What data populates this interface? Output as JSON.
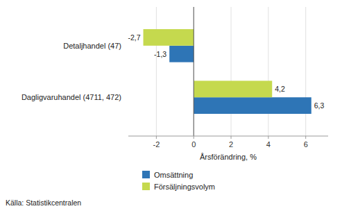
{
  "chart_data": {
    "type": "bar",
    "orientation": "horizontal",
    "categories": [
      "Dagligvaruhandel (4711, 472)",
      "Detaljhandel (47)"
    ],
    "series": [
      {
        "name": "Omsättning",
        "color": "#2E75B6",
        "values": [
          6.3,
          -1.3
        ],
        "value_labels": [
          "6,3",
          "-1,3"
        ]
      },
      {
        "name": "Försäljningsvolym",
        "color": "#C5D94E",
        "values": [
          4.2,
          -2.7
        ],
        "value_labels": [
          "4,2",
          "-2,7"
        ]
      }
    ],
    "xlabel": "Årsförändring, %",
    "xlim": [
      -3.5,
      7.2
    ],
    "xticks": [
      -2,
      0,
      2,
      4,
      6
    ],
    "grid": true,
    "data_labels": true,
    "legend": "bottom",
    "annotations": [
      "Källa: Statistikcentralen"
    ]
  }
}
